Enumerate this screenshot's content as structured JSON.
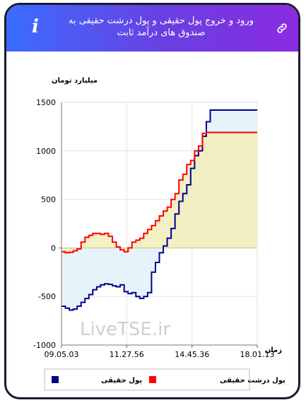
{
  "header": {
    "title": "ورود و خروج پول حقیقی و پول درشت حقیقی به صندوق های درآمد ثابت",
    "info_icon": "info-icon",
    "link_icon": "link-icon",
    "gradient": [
      "#3b6cff",
      "#8a2be2"
    ]
  },
  "chart_data": {
    "type": "line",
    "ylabel": "میلیارد تومان",
    "xlabel": "زمان",
    "ylim": [
      -1000,
      1500
    ],
    "yticks": [
      "1500",
      "1000",
      "500",
      "0",
      "-500",
      "-1000"
    ],
    "ytick_values": [
      1500,
      1000,
      500,
      0,
      -500,
      -1000
    ],
    "xticks": [
      "09.05.03",
      "11.27.56",
      "14.45.36",
      "18.01.13"
    ],
    "x_range": [
      0,
      100
    ],
    "xtick_positions": [
      0,
      33.3,
      66.7,
      100
    ],
    "watermark": "LiveTSE.ir",
    "series": [
      {
        "name": "پول حقیقی",
        "color": "#00008b",
        "fill": "#e6f2fb",
        "x": [
          0,
          2,
          4,
          6,
          8,
          10,
          12,
          14,
          16,
          18,
          20,
          22,
          24,
          26,
          28,
          30,
          32,
          34,
          36,
          38,
          40,
          42,
          44,
          46,
          48,
          50,
          52,
          54,
          56,
          58,
          60,
          62,
          64,
          66,
          68,
          70,
          72,
          74,
          76,
          78,
          80,
          100
        ],
        "values": [
          -600,
          -620,
          -640,
          -630,
          -600,
          -560,
          -520,
          -480,
          -430,
          -400,
          -380,
          -370,
          -375,
          -390,
          -400,
          -380,
          -450,
          -470,
          -460,
          -500,
          -520,
          -500,
          -460,
          -250,
          -150,
          -50,
          20,
          100,
          200,
          350,
          480,
          560,
          650,
          820,
          950,
          1000,
          1150,
          1300,
          1420,
          1420,
          1420,
          1420
        ]
      },
      {
        "name": "پول درشت حقیقی",
        "color": "#ff0000",
        "fill": "#f2eebc",
        "x": [
          0,
          2,
          4,
          6,
          8,
          10,
          12,
          14,
          16,
          18,
          20,
          22,
          24,
          26,
          28,
          30,
          32,
          34,
          36,
          38,
          40,
          42,
          44,
          46,
          48,
          50,
          52,
          54,
          56,
          58,
          60,
          62,
          64,
          66,
          68,
          70,
          72,
          74,
          76,
          78,
          80,
          100
        ],
        "values": [
          -40,
          -50,
          -45,
          -30,
          -10,
          60,
          110,
          130,
          150,
          150,
          140,
          150,
          120,
          60,
          10,
          -20,
          -40,
          0,
          60,
          80,
          100,
          150,
          190,
          230,
          280,
          330,
          380,
          420,
          500,
          560,
          700,
          760,
          860,
          900,
          1000,
          1050,
          1180,
          1190,
          1190,
          1190,
          1190,
          1190
        ]
      }
    ],
    "legend_position": "bottom"
  }
}
